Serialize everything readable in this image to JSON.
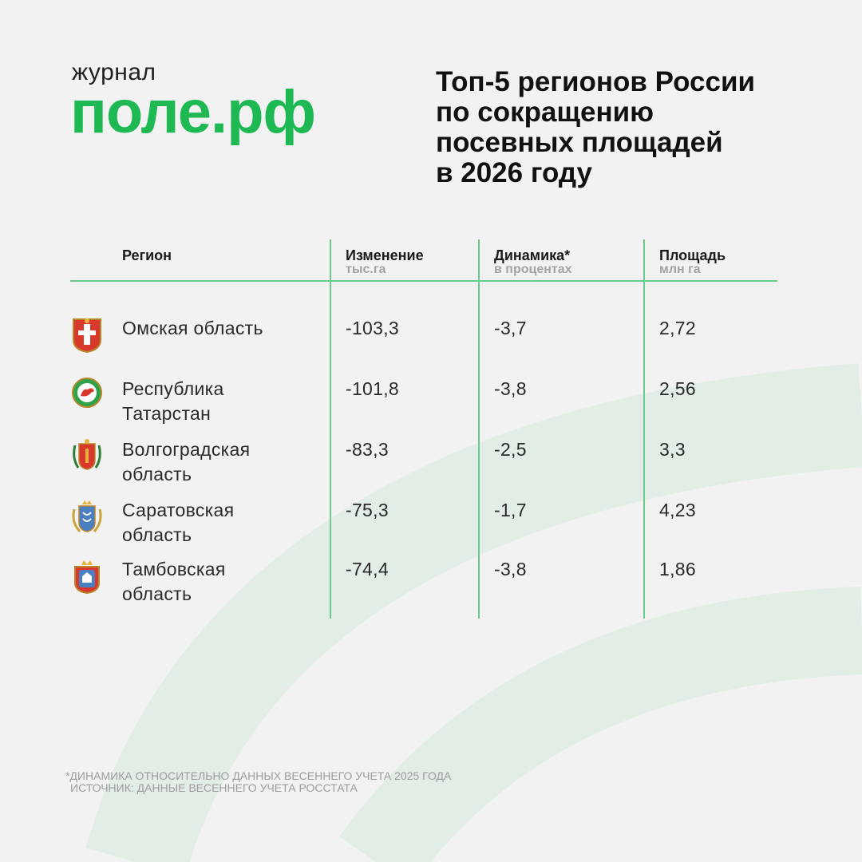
{
  "logo": {
    "sub": "журнал",
    "main": "поле.рф"
  },
  "title": "Топ-5 регионов России\nпо сокращению\nпосевных площадей\nв 2026 году",
  "table": {
    "headers": [
      {
        "main": "Регион",
        "sub": ""
      },
      {
        "main": "Изменение",
        "sub": "тыс.га"
      },
      {
        "main": "Динамика*",
        "sub": "в процентах"
      },
      {
        "main": "Площадь",
        "sub": "млн га"
      }
    ],
    "rows": [
      {
        "region": "Омская область",
        "change": "-103,3",
        "dynamics": "-3,7",
        "area": "2,72",
        "emblem": "omsk-emblem-icon"
      },
      {
        "region": "Республика\nТатарстан",
        "change": "-101,8",
        "dynamics": "-3,8",
        "area": "2,56",
        "emblem": "tatarstan-emblem-icon"
      },
      {
        "region": "Волгоградская\nобласть",
        "change": "-83,3",
        "dynamics": "-2,5",
        "area": "3,3",
        "emblem": "volgograd-emblem-icon"
      },
      {
        "region": "Саратовская\nобласть",
        "change": "-75,3",
        "dynamics": "-1,7",
        "area": "4,23",
        "emblem": "saratov-emblem-icon"
      },
      {
        "region": "Тамбовская\nобласть",
        "change": "-74,4",
        "dynamics": "-3,8",
        "area": "1,86",
        "emblem": "tambov-emblem-icon"
      }
    ]
  },
  "footnote": {
    "line1": "*динамика относительно данных весеннего учета 2025 года",
    "line2": "источник: данные весеннего учета Росстата"
  },
  "colors": {
    "brand_green": "#1fb954",
    "table_lines": "#6ccb8a",
    "background": "#f2f2f2"
  }
}
